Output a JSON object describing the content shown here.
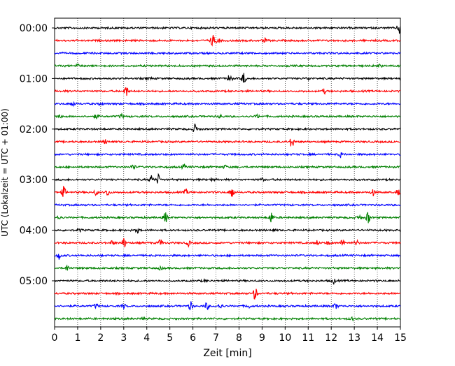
{
  "chart_data": {
    "type": "line",
    "title": "",
    "xlabel": "Zeit  [min]",
    "ylabel": "UTC (Lokalzeit = UTC + 01:00)",
    "xlim": [
      0,
      15
    ],
    "x_ticks": [
      0,
      1,
      2,
      3,
      4,
      5,
      6,
      7,
      8,
      9,
      10,
      11,
      12,
      13,
      14,
      15
    ],
    "x_tick_labels": [
      "0",
      "1",
      "2",
      "3",
      "4",
      "5",
      "6",
      "7",
      "8",
      "9",
      "10",
      "11",
      "12",
      "13",
      "14",
      "15"
    ],
    "y_tick_labels": [
      {
        "row": 0,
        "label": "00:00"
      },
      {
        "row": 4,
        "label": "01:00"
      },
      {
        "row": 8,
        "label": "02:00"
      },
      {
        "row": 12,
        "label": "03:00"
      },
      {
        "row": 16,
        "label": "04:00"
      },
      {
        "row": 20,
        "label": "05:00"
      }
    ],
    "grid": "vertical dotted at each minute",
    "row_colors": [
      "#000000",
      "#ff0000",
      "#0000ff",
      "#008000"
    ],
    "rows": [
      {
        "start": "00:00",
        "events": [
          [
            14.95,
            9
          ]
        ]
      },
      {
        "start": "00:15",
        "events": [
          [
            6.85,
            9
          ],
          [
            7.1,
            4
          ],
          [
            9.1,
            3
          ]
        ]
      },
      {
        "start": "00:30",
        "events": []
      },
      {
        "start": "00:45",
        "events": [
          [
            1.0,
            2
          ],
          [
            14.1,
            2
          ]
        ]
      },
      {
        "start": "01:00",
        "events": [
          [
            7.6,
            7
          ],
          [
            8.2,
            8
          ],
          [
            4.1,
            2
          ],
          [
            11.0,
            2
          ]
        ]
      },
      {
        "start": "01:15",
        "events": [
          [
            3.1,
            8
          ],
          [
            11.7,
            3
          ]
        ]
      },
      {
        "start": "01:30",
        "events": [
          [
            0.8,
            3
          ],
          [
            2.0,
            2
          ]
        ]
      },
      {
        "start": "01:45",
        "events": [
          [
            0.2,
            3
          ],
          [
            1.8,
            3
          ],
          [
            2.9,
            3
          ],
          [
            7.2,
            2
          ],
          [
            8.8,
            2
          ]
        ]
      },
      {
        "start": "02:00",
        "events": [
          [
            6.1,
            7
          ]
        ]
      },
      {
        "start": "02:15",
        "events": [
          [
            2.2,
            3
          ],
          [
            10.3,
            9
          ]
        ]
      },
      {
        "start": "02:30",
        "events": [
          [
            12.4,
            3
          ]
        ]
      },
      {
        "start": "02:45",
        "events": [
          [
            3.4,
            4
          ],
          [
            5.6,
            3
          ],
          [
            7.4,
            2
          ]
        ]
      },
      {
        "start": "03:00",
        "events": [
          [
            4.2,
            6
          ],
          [
            4.5,
            7
          ],
          [
            9.0,
            2
          ],
          [
            6.8,
            2
          ]
        ]
      },
      {
        "start": "03:15",
        "events": [
          [
            0.4,
            8
          ],
          [
            2.3,
            5
          ],
          [
            1.8,
            4
          ],
          [
            5.7,
            4
          ],
          [
            7.7,
            9
          ],
          [
            13.8,
            5
          ],
          [
            14.9,
            4
          ]
        ]
      },
      {
        "start": "03:30",
        "events": []
      },
      {
        "start": "03:45",
        "events": [
          [
            4.8,
            8
          ],
          [
            9.4,
            8
          ],
          [
            13.6,
            8
          ],
          [
            0.2,
            3
          ],
          [
            13.2,
            4
          ]
        ]
      },
      {
        "start": "04:00",
        "events": [
          [
            1.1,
            2
          ],
          [
            3.6,
            3
          ],
          [
            9.5,
            2
          ]
        ]
      },
      {
        "start": "04:15",
        "events": [
          [
            2.5,
            3
          ],
          [
            3.0,
            7
          ],
          [
            4.6,
            5
          ],
          [
            5.8,
            4
          ],
          [
            11.4,
            3
          ],
          [
            11.9,
            3
          ],
          [
            12.5,
            5
          ],
          [
            13.1,
            4
          ]
        ]
      },
      {
        "start": "04:30",
        "events": [
          [
            0.2,
            5
          ]
        ]
      },
      {
        "start": "04:45",
        "events": [
          [
            0.55,
            4
          ],
          [
            4.6,
            2
          ]
        ]
      },
      {
        "start": "05:00",
        "events": [
          [
            6.5,
            2
          ],
          [
            12.1,
            4
          ]
        ]
      },
      {
        "start": "05:15",
        "events": [
          [
            8.7,
            9
          ]
        ]
      },
      {
        "start": "05:30",
        "events": [
          [
            1.8,
            3
          ],
          [
            3.0,
            3
          ],
          [
            5.9,
            6
          ],
          [
            6.6,
            5
          ],
          [
            7.2,
            4
          ],
          [
            8.4,
            3
          ],
          [
            12.2,
            4
          ]
        ]
      },
      {
        "start": "05:45",
        "events": [
          [
            3.8,
            2
          ],
          [
            12.9,
            2
          ]
        ]
      }
    ]
  }
}
